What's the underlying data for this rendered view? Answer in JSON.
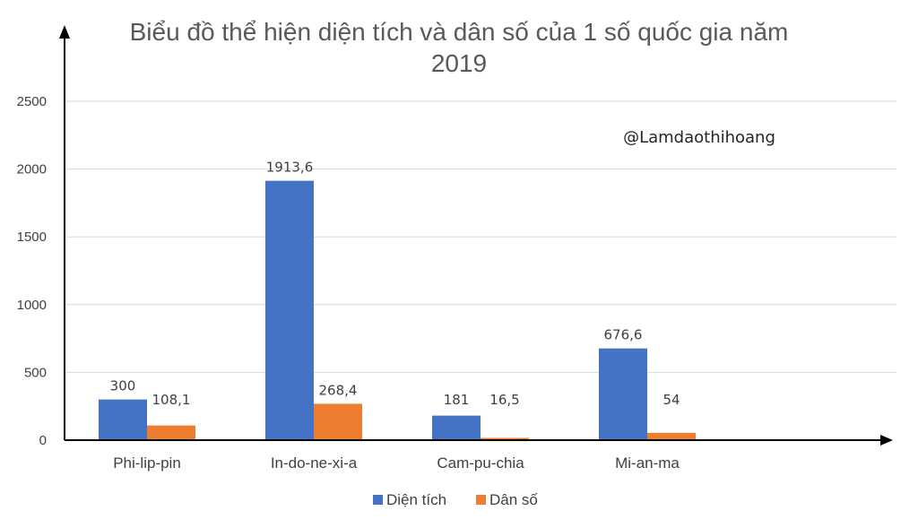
{
  "chart_data": {
    "type": "bar",
    "title": "Biểu đồ thể hiện diện tích và dân số của 1 số quốc gia năm 2019",
    "title_lines": [
      "Biểu đồ thể hiện diện tích và dân số của 1 số quốc gia năm",
      "2019"
    ],
    "categories": [
      "Phi-lip-pin",
      "In-do-ne-xi-a",
      "Cam-pu-chia",
      "Mi-an-ma"
    ],
    "series": [
      {
        "name": "Diện tích",
        "color": "#4472C4",
        "values": [
          300,
          1913.6,
          181,
          676.6
        ],
        "labels": [
          "300",
          "1913,6",
          "181",
          "676,6"
        ]
      },
      {
        "name": "Dân số",
        "color": "#ED7D31",
        "values": [
          108.1,
          268.4,
          16.5,
          54
        ],
        "labels": [
          "108,1",
          "268,4",
          "16,5",
          "54"
        ]
      }
    ],
    "ylim": [
      0,
      2500
    ],
    "yticks": [
      0,
      500,
      1000,
      1500,
      2000,
      2500
    ],
    "grid": true,
    "legend_position": "bottom",
    "watermark": "@Lamdaothihoang"
  }
}
